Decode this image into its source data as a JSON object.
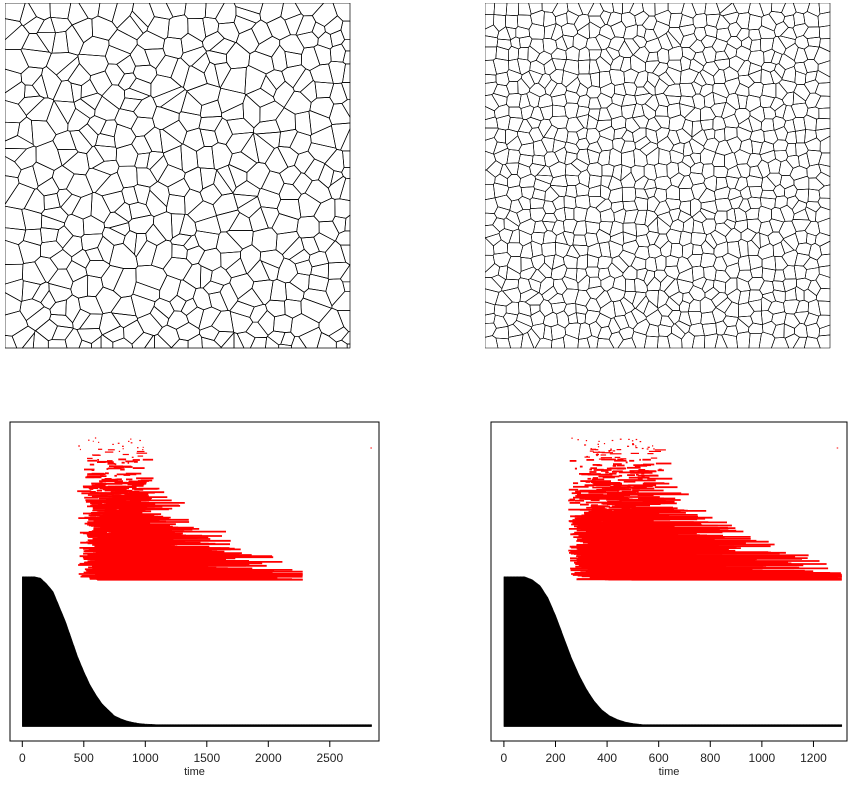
{
  "chart_data": [
    {
      "type": "voronoi-tessellation",
      "panel": "top-left",
      "cells_approx": 450,
      "style": "irregular, larger cells with ragged border",
      "stroke_color": "#000000"
    },
    {
      "type": "voronoi-tessellation",
      "panel": "top-right",
      "cells_approx": 900,
      "style": "regular, smaller cells",
      "stroke_color": "#000000"
    },
    {
      "type": "timeline",
      "panel": "bottom-left",
      "xlabel": "time",
      "xlim": [
        -100,
        2900
      ],
      "xticks": [
        0,
        500,
        1000,
        1500,
        2000,
        2500
      ],
      "survival_curve": {
        "color": "#000000",
        "points": [
          [
            0,
            1.0
          ],
          [
            100,
            1.0
          ],
          [
            150,
            0.99
          ],
          [
            200,
            0.95
          ],
          [
            250,
            0.9
          ],
          [
            300,
            0.8
          ],
          [
            350,
            0.7
          ],
          [
            400,
            0.58
          ],
          [
            450,
            0.46
          ],
          [
            500,
            0.36
          ],
          [
            550,
            0.27
          ],
          [
            600,
            0.2
          ],
          [
            650,
            0.14
          ],
          [
            700,
            0.1
          ],
          [
            750,
            0.06
          ],
          [
            800,
            0.04
          ],
          [
            850,
            0.025
          ],
          [
            900,
            0.015
          ],
          [
            950,
            0.008
          ],
          [
            1000,
            0.004
          ],
          [
            1100,
            0.0
          ],
          [
            2840,
            0.0
          ]
        ]
      },
      "intervals": {
        "color": "#ff0000",
        "count": 900,
        "start_range": [
          420,
          990
        ],
        "max_end": 2280,
        "sparse_extreme_start": 2830
      },
      "grid": false
    },
    {
      "type": "timeline",
      "panel": "bottom-right",
      "xlabel": "time",
      "xlim": [
        -50,
        1330
      ],
      "xticks": [
        0,
        200,
        400,
        600,
        800,
        1000,
        1200
      ],
      "survival_curve": {
        "color": "#000000",
        "points": [
          [
            0,
            1.0
          ],
          [
            80,
            1.0
          ],
          [
            110,
            0.98
          ],
          [
            140,
            0.94
          ],
          [
            170,
            0.86
          ],
          [
            200,
            0.74
          ],
          [
            230,
            0.6
          ],
          [
            260,
            0.46
          ],
          [
            290,
            0.34
          ],
          [
            320,
            0.24
          ],
          [
            350,
            0.16
          ],
          [
            380,
            0.1
          ],
          [
            410,
            0.06
          ],
          [
            440,
            0.035
          ],
          [
            470,
            0.018
          ],
          [
            500,
            0.008
          ],
          [
            540,
            0.0
          ],
          [
            1310,
            0.0
          ]
        ]
      },
      "intervals": {
        "color": "#ff0000",
        "count": 1000,
        "start_range": [
          225,
          600
        ],
        "max_end": 1310,
        "sparse_extreme_start": 1290
      },
      "grid": false
    }
  ]
}
